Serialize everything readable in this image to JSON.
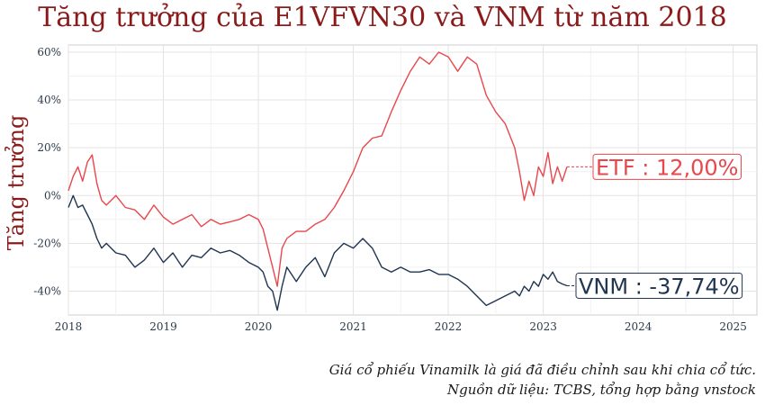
{
  "chart_data": {
    "type": "line",
    "title": "Tăng trưởng của E1VFVN30 và VNM từ năm 2018",
    "xlabel": "",
    "ylabel": "Tăng trưởng",
    "xlim": [
      2018,
      2025.25
    ],
    "ylim": [
      -50,
      63
    ],
    "grid": true,
    "x_ticks": [
      "2018",
      "2019",
      "2020",
      "2021",
      "2022",
      "2023",
      "2024",
      "2025"
    ],
    "y_ticks": [
      "60%",
      "40%",
      "20%",
      "0%",
      "-20%",
      "-40%"
    ],
    "series": [
      {
        "name": "ETF",
        "color": "#e8474c",
        "end_label": "ETF : 12,00%",
        "x": [
          2018.0,
          2018.05,
          2018.1,
          2018.15,
          2018.2,
          2018.25,
          2018.3,
          2018.35,
          2018.4,
          2018.5,
          2018.6,
          2018.7,
          2018.8,
          2018.9,
          2019.0,
          2019.1,
          2019.2,
          2019.3,
          2019.4,
          2019.5,
          2019.6,
          2019.7,
          2019.8,
          2019.9,
          2020.0,
          2020.05,
          2020.1,
          2020.15,
          2020.2,
          2020.25,
          2020.3,
          2020.4,
          2020.5,
          2020.6,
          2020.7,
          2020.8,
          2020.9,
          2021.0,
          2021.1,
          2021.2,
          2021.3,
          2021.4,
          2021.5,
          2021.6,
          2021.7,
          2021.8,
          2021.9,
          2022.0,
          2022.1,
          2022.2,
          2022.3,
          2022.4,
          2022.5,
          2022.6,
          2022.7,
          2022.75,
          2022.8,
          2022.85,
          2022.9,
          2022.95,
          2023.0,
          2023.05,
          2023.1,
          2023.15,
          2023.2,
          2023.25
        ],
        "y": [
          2,
          8,
          12,
          6,
          14,
          17,
          5,
          -2,
          -4,
          0,
          -5,
          -6,
          -10,
          -4,
          -9,
          -12,
          -10,
          -8,
          -13,
          -10,
          -12,
          -11,
          -10,
          -8,
          -10,
          -14,
          -22,
          -30,
          -38,
          -22,
          -18,
          -15,
          -15,
          -12,
          -10,
          -5,
          2,
          10,
          20,
          24,
          25,
          35,
          44,
          52,
          58,
          55,
          60,
          58,
          52,
          58,
          55,
          42,
          35,
          30,
          20,
          10,
          -2,
          6,
          0,
          12,
          8,
          18,
          5,
          12,
          6,
          12
        ]
      },
      {
        "name": "VNM",
        "color": "#1f3552",
        "end_label": "VNM : -37,74%",
        "x": [
          2018.0,
          2018.05,
          2018.1,
          2018.15,
          2018.2,
          2018.25,
          2018.3,
          2018.35,
          2018.4,
          2018.5,
          2018.6,
          2018.7,
          2018.8,
          2018.9,
          2019.0,
          2019.1,
          2019.2,
          2019.3,
          2019.4,
          2019.5,
          2019.6,
          2019.7,
          2019.8,
          2019.9,
          2020.0,
          2020.05,
          2020.1,
          2020.15,
          2020.2,
          2020.25,
          2020.3,
          2020.4,
          2020.5,
          2020.6,
          2020.7,
          2020.8,
          2020.9,
          2021.0,
          2021.1,
          2021.2,
          2021.3,
          2021.4,
          2021.5,
          2021.6,
          2021.7,
          2021.8,
          2021.9,
          2022.0,
          2022.1,
          2022.2,
          2022.3,
          2022.4,
          2022.5,
          2022.6,
          2022.7,
          2022.75,
          2022.8,
          2022.85,
          2022.9,
          2022.95,
          2023.0,
          2023.05,
          2023.1,
          2023.15,
          2023.2,
          2023.25
        ],
        "y": [
          -5,
          0,
          -5,
          -4,
          -8,
          -12,
          -18,
          -22,
          -20,
          -24,
          -25,
          -30,
          -27,
          -22,
          -28,
          -24,
          -30,
          -25,
          -26,
          -22,
          -24,
          -23,
          -25,
          -28,
          -30,
          -32,
          -38,
          -40,
          -48,
          -38,
          -30,
          -36,
          -30,
          -26,
          -34,
          -24,
          -20,
          -22,
          -18,
          -22,
          -30,
          -32,
          -30,
          -32,
          -32,
          -31,
          -33,
          -33,
          -35,
          -38,
          -42,
          -46,
          -44,
          -42,
          -40,
          -42,
          -38,
          -40,
          -36,
          -38,
          -33,
          -35,
          -32,
          -36,
          -37,
          -37.74
        ]
      }
    ],
    "annotations": [
      "Giá cổ phiếu Vinamilk là giá đã điều chỉnh sau khi chia cổ tức.",
      "Nguồn dữ liệu: TCBS, tổng hợp bằng vnstock"
    ]
  }
}
